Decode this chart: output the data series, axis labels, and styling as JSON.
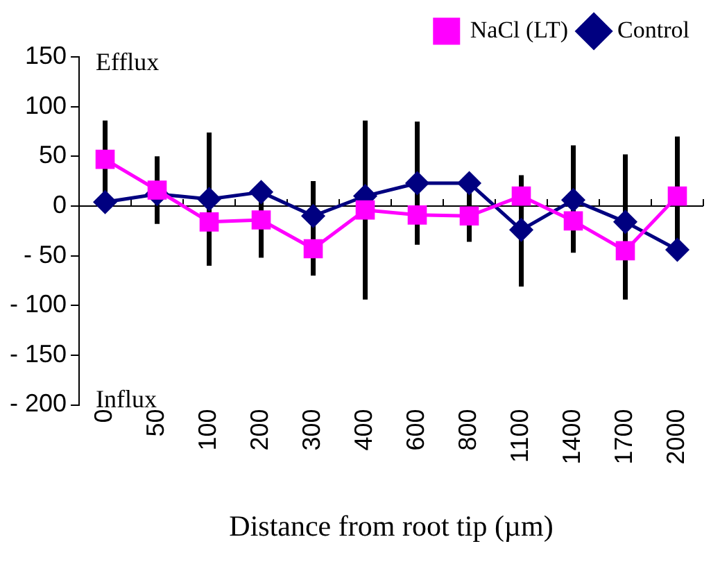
{
  "chart_data": {
    "type": "line",
    "xlabel": "Distance from root tip (µm)",
    "categories": [
      "0",
      "50",
      "100",
      "200",
      "300",
      "400",
      "600",
      "800",
      "1100",
      "1400",
      "1700",
      "2000"
    ],
    "series": [
      {
        "name": "Control",
        "color": "#000080",
        "marker": "diamond",
        "values": [
          4,
          12,
          7,
          14,
          -10,
          10,
          23,
          23,
          -24,
          6,
          -16,
          -44
        ],
        "errors": [
          [
            0,
            86
          ],
          [
            -18,
            50
          ],
          [
            -60,
            74
          ],
          [
            -52,
            14
          ],
          [
            -70,
            25
          ],
          [
            -94,
            86
          ],
          [
            -39,
            85
          ],
          [
            -36,
            23
          ],
          [
            -81,
            31
          ],
          [
            -47,
            61
          ],
          [
            -94,
            52
          ],
          [
            -44,
            70
          ]
        ]
      },
      {
        "name": "NaCl (LT)",
        "color": "#ff00ff",
        "marker": "square",
        "values": [
          47,
          16,
          -16,
          -14,
          -43,
          -4,
          -9,
          -10,
          10,
          -15,
          -45,
          10
        ]
      }
    ],
    "ylim": [
      -200,
      150
    ],
    "yticks": [
      {
        "value": -200,
        "label": "- 200"
      },
      {
        "value": -150,
        "label": "- 150"
      },
      {
        "value": -100,
        "label": "- 100"
      },
      {
        "value": -50,
        "label": "- 50"
      },
      0,
      50,
      100,
      150
    ],
    "annotations": [
      "Efflux",
      "Influx"
    ],
    "legend": "top right"
  }
}
